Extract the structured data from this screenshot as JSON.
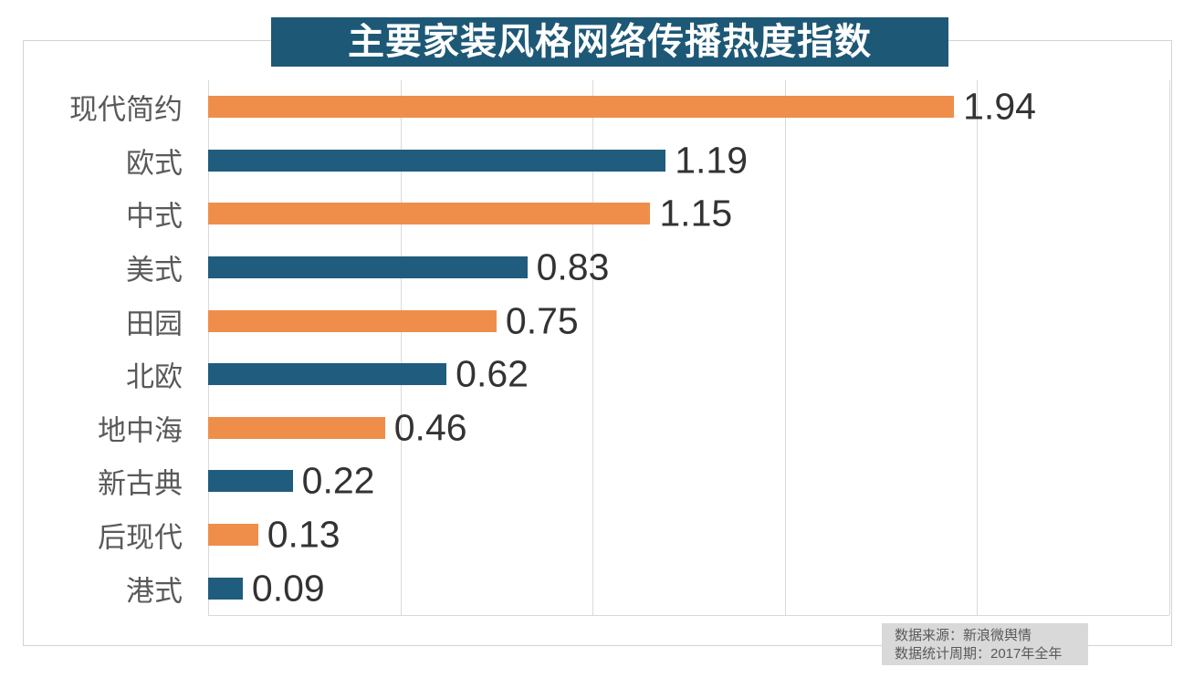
{
  "chart_data": {
    "type": "bar",
    "orientation": "horizontal",
    "title": "主要家装风格网络传播热度指数",
    "categories": [
      "现代简约",
      "欧式",
      "中式",
      "美式",
      "田园",
      "北欧",
      "地中海",
      "新古典",
      "后现代",
      "港式"
    ],
    "values": [
      1.94,
      1.19,
      1.15,
      0.83,
      0.75,
      0.62,
      0.46,
      0.22,
      0.13,
      0.09
    ],
    "value_labels": [
      "1.94",
      "1.19",
      "1.15",
      "0.83",
      "0.75",
      "0.62",
      "0.46",
      "0.22",
      "0.13",
      "0.09"
    ],
    "xlabel": "",
    "ylabel": "",
    "xlim": [
      0,
      2.5
    ],
    "grid_step": 0.5,
    "grid": true,
    "legend": false,
    "value_labels_shown": true,
    "axis_tick_labels_shown": false
  },
  "colors": {
    "bar_orange": "#EF8E4B",
    "bar_teal": "#205C7D",
    "banner_bg": "#1D5876",
    "banner_text": "#FFFFFF",
    "gridline": "#D9D9D9",
    "frame_border": "#D3D3D3",
    "category_text": "#595959",
    "value_text": "#333333",
    "footer_bg": "#D9D9D9",
    "footer_text": "#595959"
  },
  "footer": {
    "source_line": "数据来源：新浪微舆情",
    "period_line": "数据统计周期：2017年全年"
  }
}
